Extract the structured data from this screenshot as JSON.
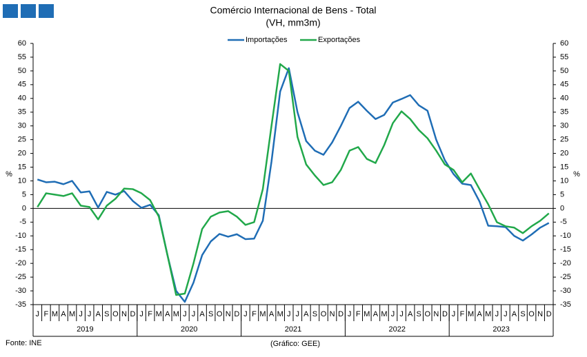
{
  "chart_data": {
    "type": "line",
    "title": "Comércio Internacional de Bens - Total",
    "subtitle": "(VH, mm3m)",
    "ylabel": "%",
    "y2label": "%",
    "source": "Fonte: INE",
    "credit": "(Gráfico: GEE)",
    "categories": [
      "J",
      "F",
      "M",
      "A",
      "M",
      "J",
      "J",
      "A",
      "S",
      "O",
      "N",
      "D",
      "J",
      "F",
      "M",
      "A",
      "M",
      "J",
      "J",
      "A",
      "S",
      "O",
      "N",
      "D",
      "J",
      "F",
      "M",
      "A",
      "M",
      "J",
      "J",
      "A",
      "S",
      "O",
      "N",
      "D",
      "J",
      "F",
      "M",
      "A",
      "M",
      "J",
      "J",
      "A",
      "S",
      "O",
      "N",
      "D",
      "J",
      "F",
      "M",
      "A",
      "M",
      "J",
      "J",
      "A",
      "S",
      "O",
      "N",
      "D"
    ],
    "years": [
      "2019",
      "2020",
      "2021",
      "2022",
      "2023"
    ],
    "series": [
      {
        "name": "Importações",
        "color": "#1f6db5",
        "values": [
          10.5,
          9.5,
          9.7,
          8.8,
          10,
          5.8,
          6.2,
          0.3,
          6,
          5,
          6.3,
          2.7,
          0.2,
          1.3,
          -2.5,
          -17,
          -30,
          -34,
          -27,
          -17,
          -12,
          -9.3,
          -10.3,
          -9.4,
          -11.2,
          -11,
          -4.5,
          17,
          42.5,
          51,
          35,
          24.5,
          21,
          19.5,
          24,
          30,
          36.5,
          38.8,
          35.5,
          32.5,
          34,
          38.5,
          39.8,
          41.2,
          37.5,
          35.5,
          25,
          17.5,
          12.5,
          9,
          8.5,
          2.5,
          -6.3,
          -6.5,
          -6.8,
          -10,
          -11.7,
          -9.5,
          -7,
          -5.3
        ]
      },
      {
        "name": "Exportações",
        "color": "#21a84a",
        "values": [
          0.5,
          5.5,
          5,
          4.5,
          5.5,
          1,
          0.5,
          -4,
          1,
          3.5,
          7.2,
          7,
          5.5,
          3,
          -3,
          -17,
          -31.5,
          -31,
          -20,
          -7.5,
          -3,
          -1.5,
          -1,
          -3,
          -6,
          -5,
          7,
          30,
          52.5,
          50,
          26,
          16,
          12,
          8.5,
          9.5,
          14,
          21,
          22.3,
          18,
          16.5,
          23,
          31,
          35.3,
          32.5,
          28.5,
          25.5,
          21,
          16,
          14,
          9.5,
          12.7,
          7,
          1.5,
          -5,
          -6.5,
          -7,
          -9,
          -6.5,
          -4.5,
          -1.8
        ]
      }
    ],
    "ylim": [
      -35,
      60
    ],
    "yticks": [
      -35,
      -30,
      -25,
      -20,
      -15,
      -10,
      -5,
      0,
      5,
      10,
      15,
      20,
      25,
      30,
      35,
      40,
      45,
      50,
      55,
      60
    ],
    "y2lim": [
      -35,
      60
    ],
    "y2ticks": [
      -35,
      -30,
      -25,
      -20,
      -15,
      -10,
      -5,
      0,
      5,
      10,
      15,
      20,
      25,
      30,
      35,
      40,
      45,
      50,
      55,
      60
    ],
    "legend": "top"
  }
}
